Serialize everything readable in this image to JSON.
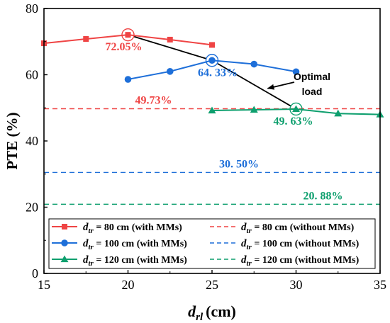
{
  "chart_data": {
    "type": "line",
    "xlabel": {
      "main": "d",
      "sub": "rl",
      "unit": "(cm)"
    },
    "ylabel": "PTE (%)",
    "xlim": [
      15,
      35
    ],
    "ylim": [
      0,
      80
    ],
    "xticks": [
      15,
      20,
      25,
      30,
      35
    ],
    "yticks": [
      0,
      20,
      40,
      60,
      80
    ],
    "grid": false,
    "legend_placement": "bottom",
    "series": [
      {
        "name": "d_tr = 80 cm (with MMs)",
        "legend_main": "d",
        "legend_sub": "tr",
        "legend_rest": " = 80 cm (with MMs)",
        "color": "#EF4444",
        "marker": "square",
        "x": [
          15,
          17.5,
          20,
          22.5,
          25
        ],
        "y": [
          69.5,
          70.8,
          72.05,
          70.6,
          69.0
        ]
      },
      {
        "name": "d_tr = 100 cm (with MMs)",
        "legend_main": "d",
        "legend_sub": "tr",
        "legend_rest": " = 100 cm (with MMs)",
        "color": "#1E6FD9",
        "marker": "circle",
        "x": [
          20,
          22.5,
          25,
          27.5,
          30
        ],
        "y": [
          58.6,
          61.0,
          64.33,
          63.2,
          60.9
        ]
      },
      {
        "name": "d_tr = 120 cm (with MMs)",
        "legend_main": "d",
        "legend_sub": "tr",
        "legend_rest": " = 120 cm (with MMs)",
        "color": "#0E9F6E",
        "marker": "triangle",
        "x": [
          25,
          27.5,
          30,
          32.5,
          35
        ],
        "y": [
          49.2,
          49.4,
          49.63,
          48.3,
          48.0
        ]
      }
    ],
    "reference_lines": [
      {
        "name": "d_tr = 80 cm (without MMs)",
        "legend_main": "d",
        "legend_sub": "tr",
        "legend_rest": " = 80 cm (without MMs)",
        "color": "#EF4444",
        "y": 49.73,
        "label": "49.73%",
        "label_x": 20
      },
      {
        "name": "d_tr = 100 cm (without MMs)",
        "legend_main": "d",
        "legend_sub": "tr",
        "legend_rest": " = 100 cm (without MMs)",
        "color": "#1E6FD9",
        "y": 30.5,
        "label": "30. 50%",
        "label_x": 25
      },
      {
        "name": "d_tr = 120 cm (without MMs)",
        "legend_main": "d",
        "legend_sub": "tr",
        "legend_rest": " = 120 cm (without MMs)",
        "color": "#0E9F6E",
        "y": 20.88,
        "label": "20. 88%",
        "label_x": 30
      }
    ],
    "optimal_points": [
      {
        "x": 20,
        "y": 72.05,
        "label": "72.05%",
        "color": "#EF4444"
      },
      {
        "x": 25,
        "y": 64.33,
        "label": "64. 33%",
        "color": "#1E6FD9"
      },
      {
        "x": 30,
        "y": 49.63,
        "label": "49. 63%",
        "color": "#0E9F6E"
      }
    ],
    "annotation": {
      "lines": [
        "Optimal",
        "load"
      ]
    }
  }
}
